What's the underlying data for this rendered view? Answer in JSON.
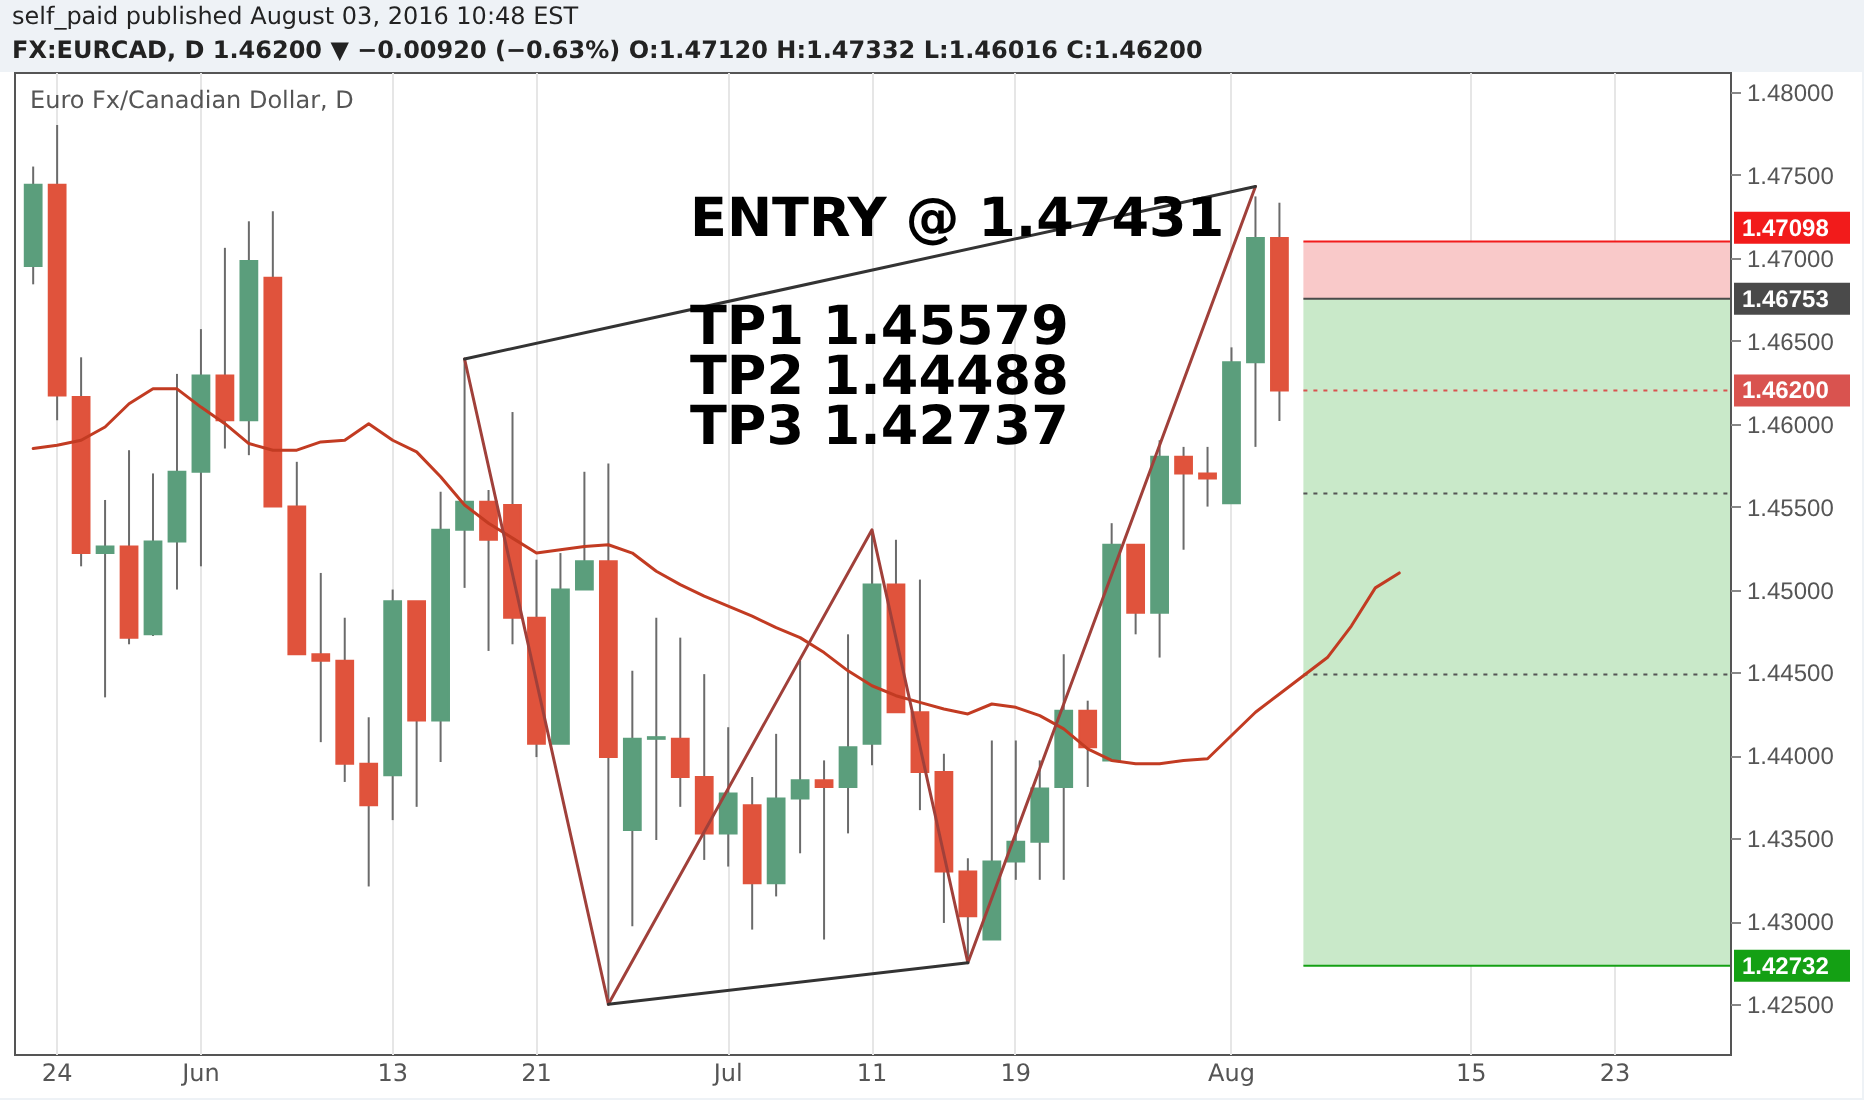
{
  "chart_data": {
    "type": "candlestick",
    "title": "Euro Fx/Canadian Dollar, D",
    "subtitle": "FX:EURCAD, D 1.46200 ▼ −0.00920 (−0.63%) O:1.47120 H:1.47332 L:1.46016 C:1.46200",
    "annotations": [
      "self_paid published August 03, 2016 10:48 EST",
      "ENTRY @ 1.47431",
      "TP1 1.45579",
      "TP2 1.44488",
      "TP3 1.42737"
    ],
    "categories": [
      null,
      "24",
      null,
      null,
      null,
      null,
      null,
      "Jun",
      null,
      null,
      null,
      null,
      null,
      null,
      null,
      "13",
      null,
      null,
      null,
      null,
      null,
      "21",
      null,
      null,
      null,
      null,
      null,
      null,
      null,
      "Jul",
      null,
      null,
      null,
      null,
      null,
      "11",
      null,
      null,
      null,
      null,
      null,
      "19",
      null,
      null,
      null,
      null,
      null,
      null,
      null,
      null,
      "Aug",
      null,
      null,
      null,
      null,
      null,
      null,
      null,
      null,
      null,
      "15",
      null,
      null,
      null,
      null,
      null,
      "23",
      null,
      null,
      null,
      null
    ],
    "ohlc": [
      [
        1.4695,
        1.4755,
        1.4684,
        1.4744
      ],
      [
        1.4744,
        1.478,
        1.4602,
        1.4617
      ],
      [
        1.4616,
        1.464,
        1.4514,
        1.4522
      ],
      [
        1.4522,
        1.4554,
        1.4435,
        1.4526
      ],
      [
        1.4526,
        1.4584,
        1.4467,
        1.4471
      ],
      [
        1.4473,
        1.457,
        1.4472,
        1.4529
      ],
      [
        1.4529,
        1.463,
        1.45,
        1.4571
      ],
      [
        1.4571,
        1.4657,
        1.4514,
        1.4629
      ],
      [
        1.4629,
        1.4706,
        1.4585,
        1.4602
      ],
      [
        1.4602,
        1.4722,
        1.4581,
        1.4698
      ],
      [
        1.4688,
        1.4728,
        1.455,
        1.455
      ],
      [
        1.455,
        1.4577,
        1.4461,
        1.4461
      ],
      [
        1.4461,
        1.451,
        1.4408,
        1.4457
      ],
      [
        1.4457,
        1.4483,
        1.4384,
        1.4395
      ],
      [
        1.4395,
        1.4423,
        1.4321,
        1.437
      ],
      [
        1.4388,
        1.45,
        1.4361,
        1.4493
      ],
      [
        1.4493,
        1.4493,
        1.4369,
        1.4421
      ],
      [
        1.4421,
        1.4559,
        1.4396,
        1.4536
      ],
      [
        1.4536,
        1.4639,
        1.4501,
        1.4553
      ],
      [
        1.4553,
        1.456,
        1.4463,
        1.453
      ],
      [
        1.4551,
        1.4607,
        1.4467,
        1.4483
      ],
      [
        1.4483,
        1.4518,
        1.4399,
        1.4407
      ],
      [
        1.4407,
        1.4522,
        1.4407,
        1.45
      ],
      [
        1.45,
        1.4571,
        1.45,
        1.4517
      ],
      [
        1.4517,
        1.4576,
        1.425,
        1.4399
      ],
      [
        1.4355,
        1.4451,
        1.4297,
        1.441
      ],
      [
        1.441,
        1.4483,
        1.4349,
        1.4411
      ],
      [
        1.441,
        1.4471,
        1.4369,
        1.4387
      ],
      [
        1.4387,
        1.4449,
        1.4337,
        1.4353
      ],
      [
        1.4353,
        1.4417,
        1.4333,
        1.4377
      ],
      [
        1.437,
        1.4387,
        1.4295,
        1.4323
      ],
      [
        1.4323,
        1.4413,
        1.4315,
        1.4374
      ],
      [
        1.4374,
        1.4457,
        1.4341,
        1.4385
      ],
      [
        1.4385,
        1.4397,
        1.4289,
        1.4381
      ],
      [
        1.4381,
        1.4473,
        1.4353,
        1.4405
      ],
      [
        1.4407,
        1.4536,
        1.4394,
        1.4503
      ],
      [
        1.4503,
        1.453,
        1.4426,
        1.4426
      ],
      [
        1.4426,
        1.4506,
        1.4367,
        1.439
      ],
      [
        1.439,
        1.4401,
        1.4299,
        1.433
      ],
      [
        1.433,
        1.4338,
        1.4275,
        1.4303
      ],
      [
        1.4289,
        1.4409,
        1.4289,
        1.4336
      ],
      [
        1.4336,
        1.4409,
        1.4325,
        1.4348
      ],
      [
        1.4348,
        1.4397,
        1.4325,
        1.438
      ],
      [
        1.4381,
        1.4461,
        1.4325,
        1.4427
      ],
      [
        1.4427,
        1.4433,
        1.4381,
        1.4405
      ],
      [
        1.4397,
        1.454,
        1.4397,
        1.4527
      ],
      [
        1.4527,
        1.4527,
        1.4473,
        1.4486
      ],
      [
        1.4486,
        1.459,
        1.4459,
        1.458
      ],
      [
        1.458,
        1.4586,
        1.4524,
        1.457
      ],
      [
        1.457,
        1.4586,
        1.455,
        1.4567
      ],
      [
        1.4552,
        1.4646,
        1.4552,
        1.4637
      ],
      [
        1.4637,
        1.4737,
        1.4586,
        1.4712
      ],
      [
        1.4712,
        1.47332,
        1.46016,
        1.462
      ],
      null,
      null,
      null,
      null,
      null,
      null,
      null,
      null,
      null,
      null,
      null,
      null,
      null,
      null,
      null,
      null,
      null,
      null
    ],
    "colors": [
      "#5b9e7c",
      "#e0533c",
      "#e0533c",
      "#5b9e7c",
      "#e0533c",
      "#5b9e7c",
      "#5b9e7c",
      "#5b9e7c",
      "#e0533c",
      "#5b9e7c",
      "#e0533c",
      "#e0533c",
      "#e0533c",
      "#e0533c",
      "#e0533c",
      "#5b9e7c",
      "#e0533c",
      "#5b9e7c",
      "#5b9e7c",
      "#e0533c",
      "#e0533c",
      "#e0533c",
      "#5b9e7c",
      "#5b9e7c",
      "#e0533c",
      "#5b9e7c",
      "#5b9e7c",
      "#e0533c",
      "#e0533c",
      "#5b9e7c",
      "#e0533c",
      "#5b9e7c",
      "#5b9e7c",
      "#e0533c",
      "#5b9e7c",
      "#5b9e7c",
      "#e0533c",
      "#e0533c",
      "#e0533c",
      "#e0533c",
      "#5b9e7c",
      "#5b9e7c",
      "#5b9e7c",
      "#5b9e7c",
      "#e0533c",
      "#5b9e7c",
      "#e0533c",
      "#5b9e7c",
      "#e0533c",
      "#e0533c",
      "#5b9e7c",
      "#5b9e7c",
      "#e0533c",
      null,
      null,
      null,
      null,
      null,
      null,
      null,
      null,
      null,
      null,
      null,
      null,
      null,
      null,
      null,
      null,
      null,
      null
    ],
    "series": [
      {
        "type": "line",
        "color": "#c23b22",
        "values": [
          1.4585,
          1.4587,
          1.459,
          1.4598,
          1.4612,
          1.4621,
          1.4621,
          1.461,
          1.46,
          1.4588,
          1.4584,
          1.4584,
          1.4589,
          1.459,
          1.46,
          1.459,
          1.4583,
          1.4568,
          1.4551,
          1.454,
          1.4531,
          1.4522,
          1.4524,
          1.4526,
          1.4527,
          1.4522,
          1.4511,
          1.4503,
          1.4496,
          1.449,
          1.4484,
          1.4477,
          1.4471,
          1.4462,
          1.4451,
          1.4442,
          1.4436,
          1.4432,
          1.4428,
          1.4425,
          1.4431,
          1.4429,
          1.4424,
          1.4416,
          1.4404,
          1.4397,
          1.4395,
          1.4395,
          1.4397,
          1.4398,
          1.4412,
          1.4426,
          1.4437,
          1.4448,
          1.4459,
          1.4478,
          1.4501,
          1.451,
          null,
          null,
          null,
          null,
          null,
          null,
          null,
          null,
          null,
          null,
          null,
          null,
          null
        ]
      },
      {
        "type": "line",
        "color": "#a0403a",
        "values": [
          null,
          null,
          null,
          null,
          null,
          null,
          null,
          null,
          null,
          null,
          null,
          null,
          null,
          null,
          null,
          null,
          null,
          null,
          1.4639,
          null,
          null,
          null,
          null,
          null,
          1.425,
          null,
          null,
          null,
          null,
          null,
          null,
          null,
          null,
          null,
          null,
          1.4536,
          null,
          null,
          null,
          1.4275,
          null,
          null,
          null,
          null,
          null,
          null,
          null,
          null,
          null,
          null,
          null,
          1.4743,
          null,
          null,
          null,
          null,
          null,
          null,
          null,
          null,
          null,
          null,
          null,
          null,
          null,
          null,
          null,
          null,
          null,
          null,
          null
        ]
      },
      {
        "type": "line",
        "color": "#333333",
        "values": [
          null,
          null,
          null,
          null,
          null,
          null,
          null,
          null,
          null,
          null,
          null,
          null,
          null,
          null,
          null,
          null,
          null,
          null,
          1.4639,
          null,
          null,
          null,
          null,
          null,
          null,
          null,
          null,
          null,
          null,
          null,
          null,
          null,
          null,
          null,
          null,
          null,
          null,
          null,
          null,
          null,
          null,
          null,
          null,
          null,
          null,
          null,
          null,
          null,
          null,
          null,
          null,
          1.4743,
          null,
          null,
          null,
          null,
          null,
          null,
          null,
          null,
          null,
          null,
          null,
          null,
          null,
          null,
          null,
          null,
          null,
          null,
          null
        ]
      },
      {
        "type": "line",
        "color": "#333333",
        "values": [
          null,
          null,
          null,
          null,
          null,
          null,
          null,
          null,
          null,
          null,
          null,
          null,
          null,
          null,
          null,
          null,
          null,
          null,
          null,
          null,
          null,
          null,
          null,
          null,
          1.425,
          null,
          null,
          null,
          null,
          null,
          null,
          null,
          null,
          null,
          null,
          null,
          null,
          null,
          null,
          1.4275,
          null,
          null,
          null,
          null,
          null,
          null,
          null,
          null,
          null,
          null,
          null,
          null,
          null,
          null,
          null,
          null,
          null,
          null,
          null,
          null,
          null,
          null,
          null,
          null,
          null,
          null,
          null,
          null,
          null,
          null,
          null
        ]
      }
    ],
    "ylim": [
      1.422,
      1.4812
    ],
    "yticks": [
      {
        "value": 1.425,
        "label": "1.42500"
      },
      {
        "value": 1.43,
        "label": "1.43000"
      },
      {
        "value": 1.435,
        "label": "1.43500"
      },
      {
        "value": 1.44,
        "label": "1.44000"
      },
      {
        "value": 1.445,
        "label": "1.44500"
      },
      {
        "value": 1.45,
        "label": "1.45000"
      },
      {
        "value": 1.455,
        "label": "1.45500"
      },
      {
        "value": 1.46,
        "label": "1.46000"
      },
      {
        "value": 1.465,
        "label": "1.46500"
      },
      {
        "value": 1.47,
        "label": "1.47000"
      },
      {
        "value": 1.475,
        "label": "1.47500"
      },
      {
        "value": 1.48,
        "label": "1.48000"
      }
    ],
    "bands": [
      {
        "axis": "y",
        "from": 1.46753,
        "to": 1.47098,
        "color": "#f9c9c9"
      },
      {
        "axis": "y",
        "from": 1.42732,
        "to": 1.46753,
        "color": "#c9e9c9"
      }
    ],
    "ref_lines": [
      {
        "axis": "y",
        "value": 1.47098,
        "label": "1.47098",
        "color": "#f21b1b"
      },
      {
        "axis": "y",
        "value": 1.46753,
        "label": "1.46753",
        "color": "#4a4a4a"
      },
      {
        "axis": "y",
        "value": 1.462,
        "label": "1.46200",
        "color": "#d9534f",
        "line_style": "dotted"
      },
      {
        "axis": "y",
        "value": 1.45579,
        "color": "#555555",
        "line_style": "dotted"
      },
      {
        "axis": "y",
        "value": 1.44488,
        "color": "#555555",
        "line_style": "dotted"
      },
      {
        "axis": "y",
        "value": 1.42732,
        "label": "1.42732",
        "color": "#14a014"
      }
    ],
    "grid": "x"
  }
}
